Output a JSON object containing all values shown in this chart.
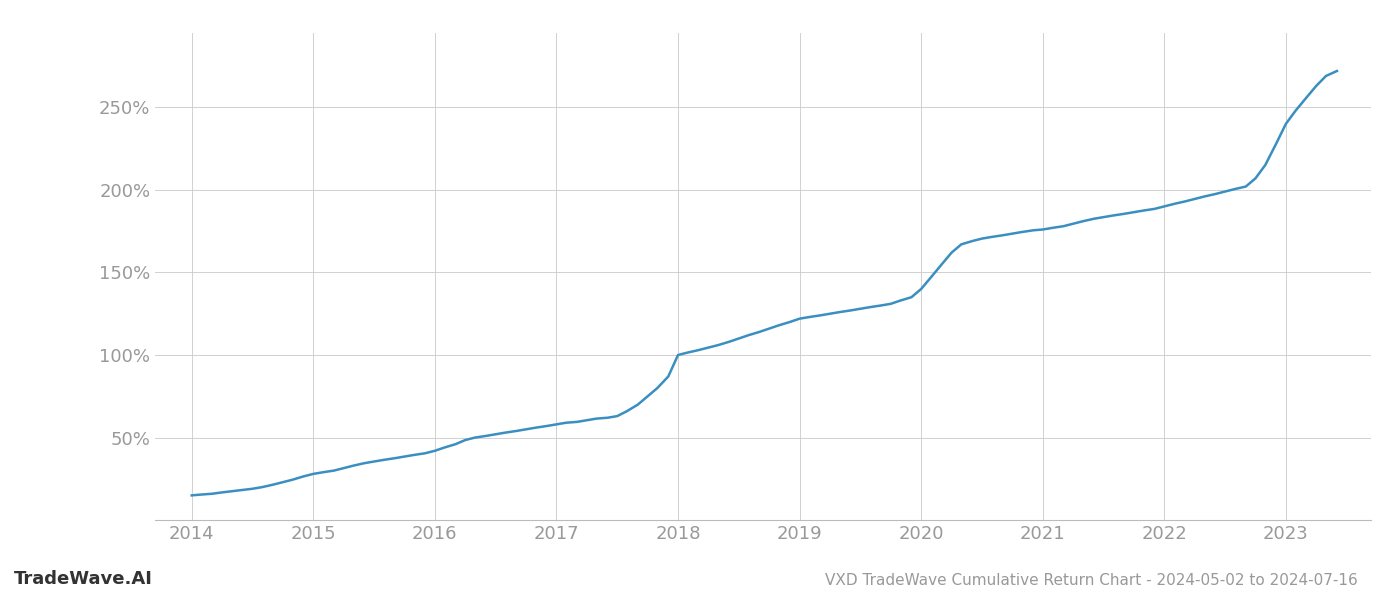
{
  "title": "VXD TradeWave Cumulative Return Chart - 2024-05-02 to 2024-07-16",
  "watermark": "TradeWave.AI",
  "line_color": "#3a8fc0",
  "background_color": "#ffffff",
  "grid_color": "#cccccc",
  "x_values": [
    2014.0,
    2014.08,
    2014.17,
    2014.25,
    2014.33,
    2014.42,
    2014.5,
    2014.58,
    2014.67,
    2014.75,
    2014.83,
    2014.92,
    2015.0,
    2015.08,
    2015.17,
    2015.25,
    2015.33,
    2015.42,
    2015.5,
    2015.58,
    2015.67,
    2015.75,
    2015.83,
    2015.92,
    2016.0,
    2016.08,
    2016.17,
    2016.25,
    2016.33,
    2016.42,
    2016.5,
    2016.58,
    2016.67,
    2016.75,
    2016.83,
    2016.92,
    2017.0,
    2017.08,
    2017.17,
    2017.25,
    2017.33,
    2017.42,
    2017.5,
    2017.58,
    2017.67,
    2017.75,
    2017.83,
    2017.92,
    2018.0,
    2018.08,
    2018.17,
    2018.25,
    2018.33,
    2018.42,
    2018.5,
    2018.58,
    2018.67,
    2018.75,
    2018.83,
    2018.92,
    2019.0,
    2019.08,
    2019.17,
    2019.25,
    2019.33,
    2019.42,
    2019.5,
    2019.58,
    2019.67,
    2019.75,
    2019.83,
    2019.92,
    2020.0,
    2020.08,
    2020.17,
    2020.25,
    2020.33,
    2020.42,
    2020.5,
    2020.58,
    2020.67,
    2020.75,
    2020.83,
    2020.92,
    2021.0,
    2021.08,
    2021.17,
    2021.25,
    2021.33,
    2021.42,
    2021.5,
    2021.58,
    2021.67,
    2021.75,
    2021.83,
    2021.92,
    2022.0,
    2022.08,
    2022.17,
    2022.25,
    2022.33,
    2022.42,
    2022.5,
    2022.58,
    2022.67,
    2022.75,
    2022.83,
    2022.92,
    2023.0,
    2023.08,
    2023.17,
    2023.25,
    2023.33,
    2023.42
  ],
  "y_values": [
    15.0,
    15.5,
    16.0,
    16.8,
    17.5,
    18.3,
    19.0,
    20.0,
    21.5,
    23.0,
    24.5,
    26.5,
    28.0,
    29.0,
    30.0,
    31.5,
    33.0,
    34.5,
    35.5,
    36.5,
    37.5,
    38.5,
    39.5,
    40.5,
    42.0,
    44.0,
    46.0,
    48.5,
    50.0,
    51.0,
    52.0,
    53.0,
    54.0,
    55.0,
    56.0,
    57.0,
    58.0,
    59.0,
    59.5,
    60.5,
    61.5,
    62.0,
    63.0,
    66.0,
    70.0,
    75.0,
    80.0,
    87.0,
    100.0,
    101.5,
    103.0,
    104.5,
    106.0,
    108.0,
    110.0,
    112.0,
    114.0,
    116.0,
    118.0,
    120.0,
    122.0,
    123.0,
    124.0,
    125.0,
    126.0,
    127.0,
    128.0,
    129.0,
    130.0,
    131.0,
    133.0,
    135.0,
    140.0,
    147.0,
    155.0,
    162.0,
    167.0,
    169.0,
    170.5,
    171.5,
    172.5,
    173.5,
    174.5,
    175.5,
    176.0,
    177.0,
    178.0,
    179.5,
    181.0,
    182.5,
    183.5,
    184.5,
    185.5,
    186.5,
    187.5,
    188.5,
    190.0,
    191.5,
    193.0,
    194.5,
    196.0,
    197.5,
    199.0,
    200.5,
    202.0,
    207.0,
    215.0,
    228.0,
    240.0,
    248.0,
    256.0,
    263.0,
    269.0,
    272.0
  ],
  "xlim": [
    2013.7,
    2023.7
  ],
  "ylim": [
    0,
    295
  ],
  "yticks": [
    50,
    100,
    150,
    200,
    250
  ],
  "xticks": [
    2014,
    2015,
    2016,
    2017,
    2018,
    2019,
    2020,
    2021,
    2022,
    2023
  ],
  "tick_label_color": "#999999",
  "tick_fontsize": 13,
  "title_fontsize": 11,
  "watermark_fontsize": 13,
  "line_width": 1.8
}
